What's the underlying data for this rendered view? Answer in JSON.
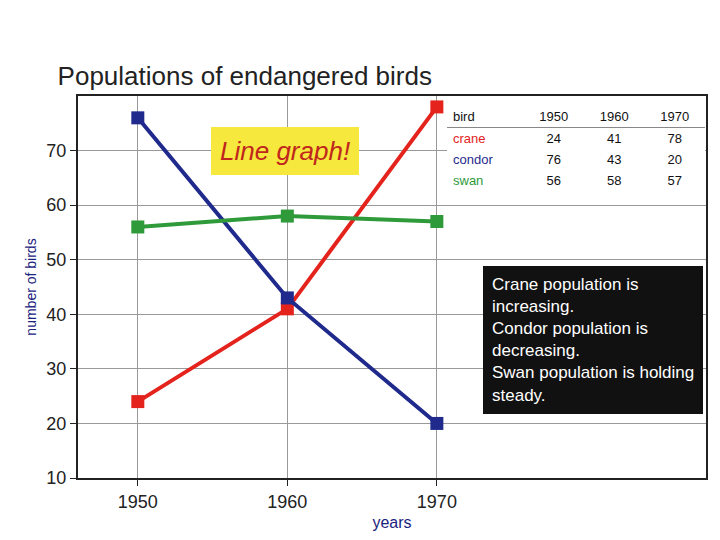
{
  "chart_data": {
    "type": "line",
    "title": "Populations of endangered birds",
    "x_label": "years",
    "y_label": "number of birds",
    "x": [
      1950,
      1960,
      1970
    ],
    "series": [
      {
        "name": "crane",
        "color": "#e3231c",
        "marker": "square",
        "values": [
          24,
          41,
          78
        ]
      },
      {
        "name": "condor",
        "color": "#1f2a8c",
        "marker": "square",
        "values": [
          76,
          43,
          20
        ]
      },
      {
        "name": "swan",
        "color": "#2e9a3a",
        "marker": "square",
        "values": [
          56,
          58,
          57
        ]
      }
    ],
    "xlim": [
      1946,
      1988
    ],
    "xticks": [
      1950,
      1960,
      1970
    ],
    "ylim": [
      10,
      80
    ],
    "yticks": [
      10,
      20,
      30,
      40,
      50,
      60,
      70
    ],
    "grid": true,
    "table_header": "bird",
    "annotations": [
      "Line graph!",
      "Crane population is increasing.",
      "Condor population is decreasing.",
      "Swan population is holding steady."
    ]
  }
}
